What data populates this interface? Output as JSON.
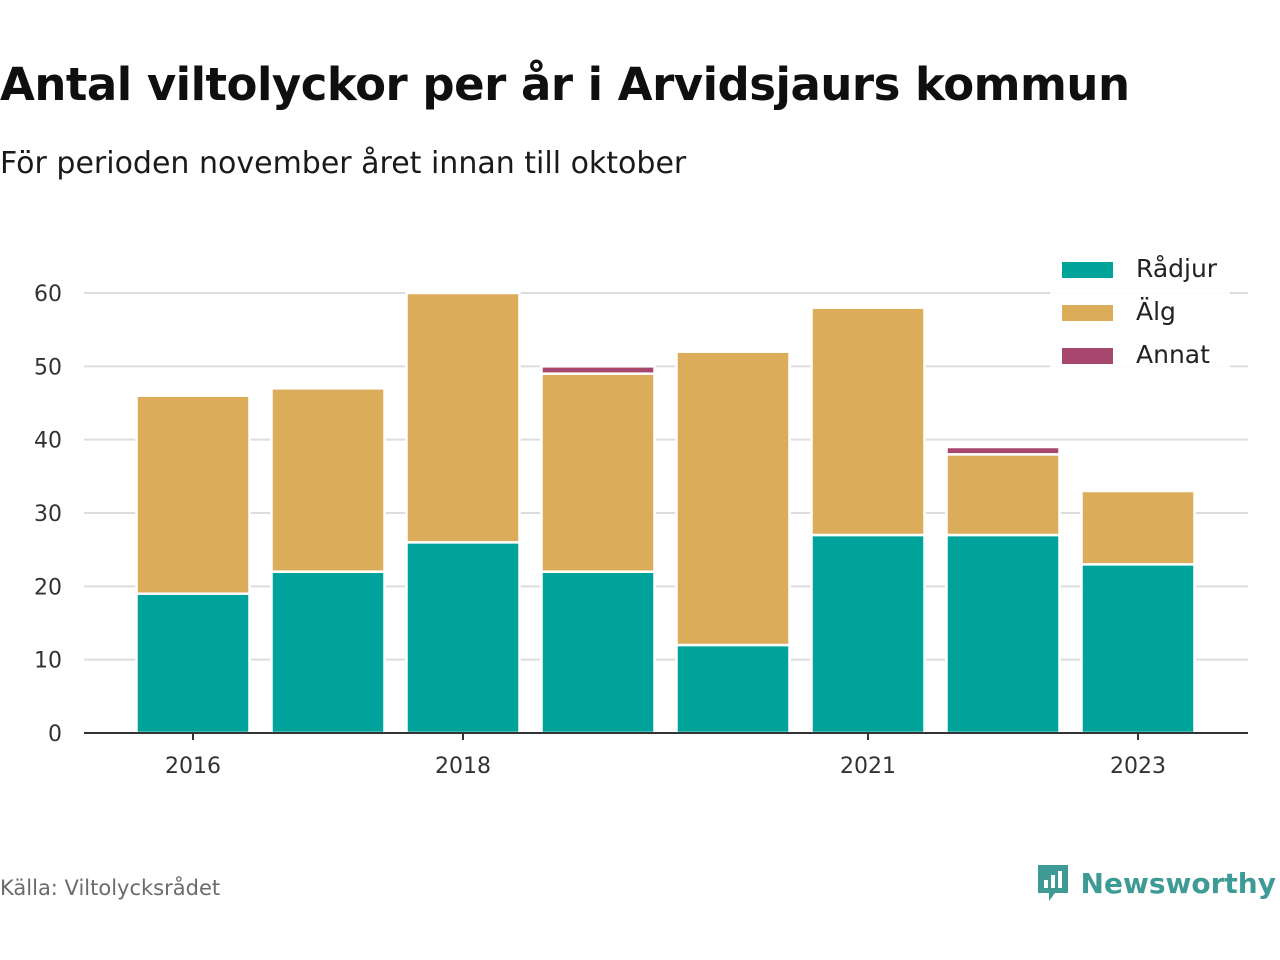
{
  "title": "Antal viltolyckor per år i Arvidsjaurs kommun",
  "subtitle": "För perioden november året innan till oktober",
  "source": "Källa: Viltolycksrådet",
  "brand": {
    "name": "Newsworthy",
    "icon": "newsworthy-logo-icon",
    "color": "#3d9a95"
  },
  "chart_data": {
    "type": "bar",
    "stacked": true,
    "categories": [
      "2016",
      "2017",
      "2018",
      "2019",
      "2020",
      "2021",
      "2022",
      "2023"
    ],
    "x_tick_labels": [
      "2016",
      "",
      "2018",
      "",
      "",
      "2021",
      "",
      "2023"
    ],
    "series": [
      {
        "name": "Rådjur",
        "color": "#00a39a",
        "values": [
          19,
          22,
          26,
          22,
          12,
          27,
          27,
          23
        ]
      },
      {
        "name": "Älg",
        "color": "#dbad5b",
        "values": [
          27,
          25,
          34,
          27,
          40,
          31,
          11,
          10
        ]
      },
      {
        "name": "Annat",
        "color": "#a8476d",
        "values": [
          0,
          0,
          0,
          1,
          0,
          0,
          1,
          0
        ]
      }
    ],
    "ylim": [
      0,
      60
    ],
    "yticks": [
      0,
      10,
      20,
      30,
      40,
      50,
      60
    ],
    "grid": true,
    "legend_position": "top-right",
    "xlabel": "",
    "ylabel": ""
  }
}
